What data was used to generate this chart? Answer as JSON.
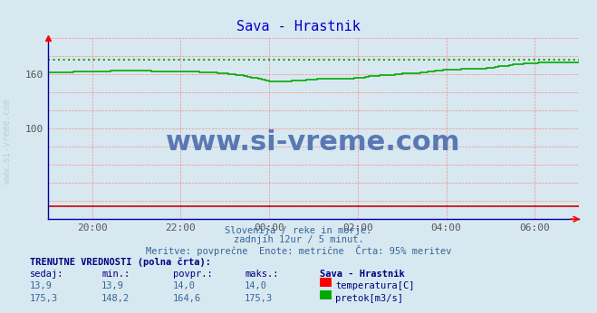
{
  "title": "Sava - Hrastnik",
  "title_color": "#0000cd",
  "bg_color": "#d8e8f0",
  "plot_bg_color": "#d8e8f0",
  "xlim": [
    0,
    144
  ],
  "ylim": [
    0,
    200
  ],
  "grid_color": "#ff6666",
  "temp_color": "#cc0000",
  "flow_color": "#00aa00",
  "watermark_text": "www.si-vreme.com",
  "watermark_color": "#4466aa",
  "subtitle1": "Slovenija / reke in morje.",
  "subtitle2": "zadnjih 12ur / 5 minut.",
  "subtitle3": "Meritve: povprečne  Enote: metrične  Črta: 95% meritev",
  "footer_label1": "TRENUTNE VREDNOSTI (polna črta):",
  "footer_cols": [
    "sedaj:",
    "min.:",
    "povpr.:",
    "maks.:",
    "Sava - Hrastnik"
  ],
  "temp_row": [
    "13,9",
    "13,9",
    "14,0",
    "14,0",
    "temperatura[C]"
  ],
  "flow_row": [
    "175,3",
    "148,2",
    "164,6",
    "175,3",
    "pretok[m3/s]"
  ],
  "max_flow": 175.3,
  "flow_data_x": [
    0,
    1,
    2,
    3,
    4,
    5,
    6,
    7,
    8,
    9,
    10,
    11,
    12,
    13,
    14,
    15,
    16,
    17,
    18,
    19,
    20,
    21,
    22,
    23,
    24,
    25,
    26,
    27,
    28,
    29,
    30,
    31,
    32,
    33,
    34,
    35,
    36,
    37,
    38,
    39,
    40,
    41,
    42,
    43,
    44,
    45,
    46,
    47,
    48,
    49,
    50,
    51,
    52,
    53,
    54,
    55,
    56,
    57,
    58,
    59,
    60,
    61,
    62,
    63,
    64,
    65,
    66,
    67,
    68,
    69,
    70,
    71,
    72,
    73,
    74,
    75,
    76,
    77,
    78,
    79,
    80,
    81,
    82,
    83,
    84,
    85,
    86,
    87,
    88,
    89,
    90,
    91,
    92,
    93,
    94,
    95,
    96,
    97,
    98,
    99,
    100,
    101,
    102,
    103,
    104,
    105,
    106,
    107,
    108,
    109,
    110,
    111,
    112,
    113,
    114,
    115,
    116,
    117,
    118,
    119,
    120,
    121,
    122,
    123,
    124,
    125,
    126,
    127,
    128,
    129,
    130,
    131,
    132,
    133,
    134,
    135,
    136,
    137,
    138,
    139,
    140,
    141,
    142,
    143,
    144
  ],
  "flow_data_y": [
    162,
    162,
    162,
    162,
    162,
    162,
    162,
    163,
    163,
    163,
    163,
    163,
    163,
    163,
    163,
    163,
    163,
    164,
    164,
    164,
    164,
    164,
    164,
    164,
    164,
    164,
    164,
    164,
    163,
    163,
    163,
    163,
    163,
    163,
    163,
    163,
    163,
    163,
    163,
    163,
    163,
    162,
    162,
    162,
    162,
    162,
    161,
    161,
    161,
    160,
    160,
    159,
    159,
    158,
    157,
    156,
    156,
    155,
    154,
    153,
    152,
    152,
    152,
    152,
    152,
    152,
    153,
    153,
    153,
    153,
    154,
    154,
    154,
    155,
    155,
    155,
    155,
    155,
    155,
    155,
    155,
    155,
    155,
    156,
    156,
    156,
    157,
    158,
    158,
    158,
    159,
    159,
    159,
    159,
    160,
    160,
    161,
    161,
    161,
    161,
    161,
    162,
    162,
    163,
    163,
    164,
    164,
    165,
    165,
    165,
    165,
    165,
    166,
    166,
    166,
    166,
    166,
    166,
    166,
    167,
    167,
    168,
    169,
    169,
    169,
    170,
    171,
    171,
    171,
    172,
    172,
    172,
    172,
    173,
    173,
    173,
    173,
    173,
    173,
    173,
    173,
    173,
    173,
    173,
    173
  ],
  "temp_data_y": [
    13.9,
    13.9,
    13.9,
    13.9,
    13.9,
    13.9,
    13.9,
    13.9,
    13.9,
    13.9,
    13.9,
    13.9,
    13.9,
    13.9,
    13.9,
    13.9,
    13.9,
    13.9,
    13.9,
    13.9,
    13.9,
    13.9,
    13.9,
    13.9,
    13.9,
    13.9,
    13.9,
    13.9,
    13.9,
    13.9,
    13.9,
    13.9,
    13.9,
    13.9,
    13.9,
    13.9,
    13.9,
    13.9,
    13.9,
    13.9,
    13.9,
    13.9,
    13.9,
    13.9,
    13.9,
    13.9,
    13.9,
    13.9,
    13.9,
    13.9,
    13.9,
    13.9,
    13.9,
    13.9,
    13.9,
    13.9,
    13.9,
    13.9,
    13.9,
    13.9,
    14.0,
    14.0,
    14.0,
    14.0,
    14.0,
    14.0,
    14.0,
    14.0,
    14.0,
    14.0,
    14.0,
    14.0,
    14.0,
    14.0,
    14.0,
    14.0,
    14.0,
    14.0,
    14.0,
    14.0,
    14.0,
    14.0,
    14.0,
    14.0,
    14.0,
    14.0,
    14.0,
    14.0,
    14.0,
    14.0,
    14.0,
    14.0,
    14.0,
    14.0,
    14.0,
    14.0,
    14.0,
    14.0,
    14.0,
    14.0,
    14.0,
    14.0,
    14.0,
    14.0,
    14.0,
    14.0,
    14.0,
    14.0,
    14.0,
    14.0,
    14.0,
    14.0,
    14.0,
    14.0,
    14.0,
    14.0,
    14.0,
    14.0,
    14.0,
    14.0,
    14.0,
    14.0,
    14.0,
    14.0,
    14.0,
    14.0,
    14.0,
    14.0,
    14.0,
    14.0,
    14.0,
    14.0,
    14.0,
    14.0,
    14.0,
    14.0,
    14.0,
    14.0,
    14.0,
    14.0,
    14.0,
    14.0,
    14.0,
    14.0,
    14.0
  ]
}
